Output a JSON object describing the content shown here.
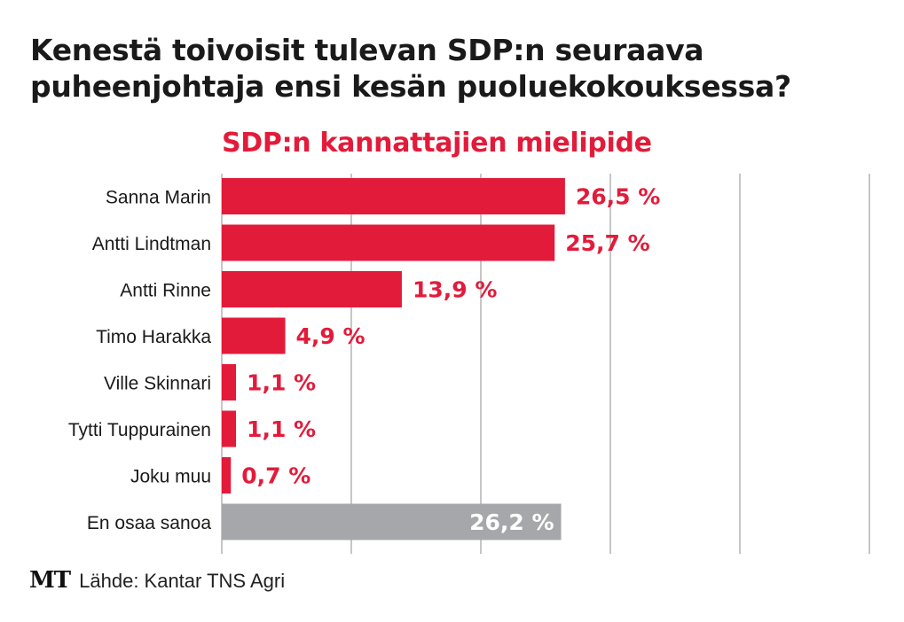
{
  "title_line1": "Kenestä toivoisit tulevan SDP:n seuraava",
  "title_line2": "puheenjohtaja ensi kesän puoluekokouksessa?",
  "subtitle": "SDP:n kannattajien mielipide",
  "footer": {
    "logo": "MT",
    "source": "Lähde: Kantar TNS Agri"
  },
  "colors": {
    "primary": "#e31b3a",
    "neutral": "#a5a7aa",
    "grid": "#8c8c8c"
  },
  "chart_data": {
    "type": "bar",
    "orientation": "horizontal",
    "title": "Kenestä toivoisit tulevan SDP:n seuraava puheenjohtaja ensi kesän puoluekokouksessa?",
    "subtitle": "SDP:n kannattajien mielipide",
    "categories": [
      "Sanna Marin",
      "Antti Lindtman",
      "Antti Rinne",
      "Timo Harakka",
      "Ville Skinnari",
      "Tytti Tuppurainen",
      "Joku muu",
      "En osaa sanoa"
    ],
    "values": [
      26.5,
      25.7,
      13.9,
      4.9,
      1.1,
      1.1,
      0.7,
      26.2
    ],
    "labels": [
      "26,5 %",
      "25,7 %",
      "13,9 %",
      "4,9 %",
      "1,1 %",
      "1,1 %",
      "0,7 %",
      "26,2 %"
    ],
    "highlight": [
      false,
      false,
      false,
      false,
      false,
      false,
      false,
      true
    ],
    "xlim": [
      0,
      50
    ],
    "grid_ticks": [
      0,
      10,
      20,
      30,
      40,
      50
    ],
    "grid": true,
    "xlabel": "",
    "ylabel": "",
    "unit": "%"
  }
}
